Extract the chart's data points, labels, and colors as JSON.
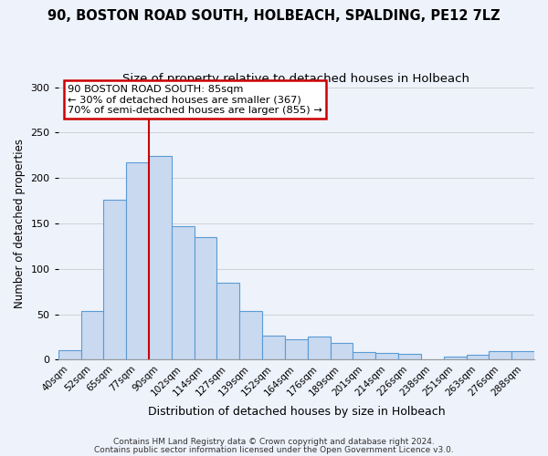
{
  "title": "90, BOSTON ROAD SOUTH, HOLBEACH, SPALDING, PE12 7LZ",
  "subtitle": "Size of property relative to detached houses in Holbeach",
  "xlabel": "Distribution of detached houses by size in Holbeach",
  "ylabel": "Number of detached properties",
  "categories": [
    "40sqm",
    "52sqm",
    "65sqm",
    "77sqm",
    "90sqm",
    "102sqm",
    "114sqm",
    "127sqm",
    "139sqm",
    "152sqm",
    "164sqm",
    "176sqm",
    "189sqm",
    "201sqm",
    "214sqm",
    "226sqm",
    "238sqm",
    "251sqm",
    "263sqm",
    "276sqm",
    "288sqm"
  ],
  "values": [
    10,
    54,
    176,
    217,
    224,
    147,
    135,
    85,
    54,
    27,
    23,
    26,
    19,
    8,
    7,
    6,
    0,
    3,
    5,
    9,
    9
  ],
  "bar_color": "#c9d9f0",
  "bar_edge_color": "#5b9bd5",
  "vline_x": 3.5,
  "vline_color": "#cc0000",
  "annotation_text": "90 BOSTON ROAD SOUTH: 85sqm\n← 30% of detached houses are smaller (367)\n70% of semi-detached houses are larger (855) →",
  "annotation_box_color": "#ffffff",
  "annotation_box_edge_color": "#cc0000",
  "ylim": [
    0,
    300
  ],
  "yticks": [
    0,
    50,
    100,
    150,
    200,
    250,
    300
  ],
  "footer1": "Contains HM Land Registry data © Crown copyright and database right 2024.",
  "footer2": "Contains public sector information licensed under the Open Government Licence v3.0.",
  "bg_color": "#eef2fb",
  "title_fontsize": 10.5,
  "subtitle_fontsize": 9.5
}
